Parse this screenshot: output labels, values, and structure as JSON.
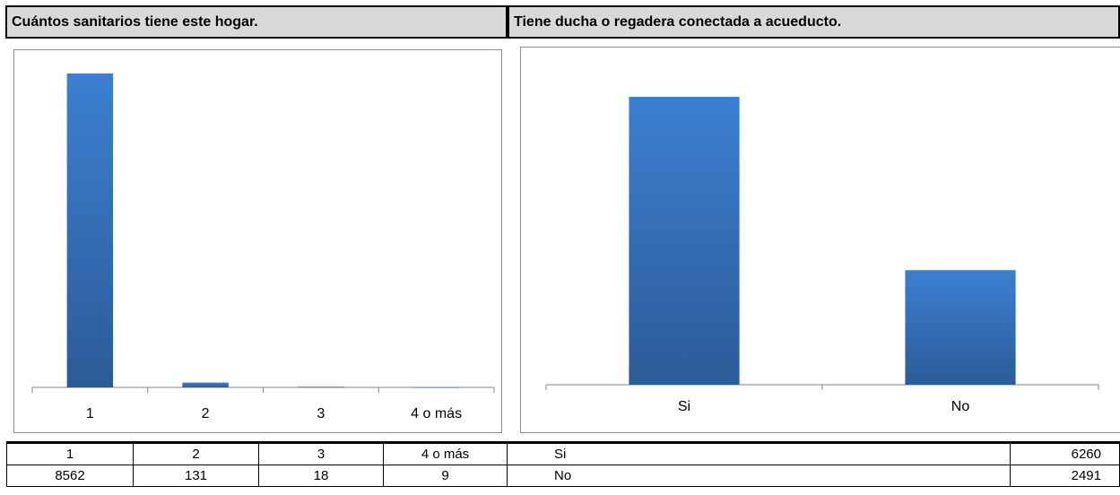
{
  "headers": {
    "left": "Cuántos sanitarios tiene este hogar.",
    "right": "Tiene ducha o regadera conectada a acueducto."
  },
  "colors": {
    "bar_top": "#3c7fd1",
    "bar_bottom": "#2c5b97",
    "header_bg": "#d9d9d9"
  },
  "chart_data": [
    {
      "type": "bar",
      "title": "Cuántos sanitarios tiene este hogar.",
      "categories": [
        "1",
        "2",
        "3",
        "4 o más"
      ],
      "values": [
        8562,
        131,
        18,
        9
      ],
      "ylim": [
        0,
        9000
      ],
      "grid": false
    },
    {
      "type": "bar",
      "title": "Tiene ducha o regadera conectada a acueducto.",
      "categories": [
        "Si",
        "No"
      ],
      "values": [
        6260,
        2491
      ],
      "ylim": [
        0,
        7000
      ],
      "grid": false
    }
  ],
  "tables": {
    "left": {
      "header": [
        "1",
        "2",
        "3",
        "4 o más"
      ],
      "values": [
        "8562",
        "131",
        "18",
        "9"
      ]
    },
    "right": {
      "rows": [
        {
          "label": "Si",
          "value": "6260"
        },
        {
          "label": "No",
          "value": "2491"
        }
      ]
    }
  }
}
